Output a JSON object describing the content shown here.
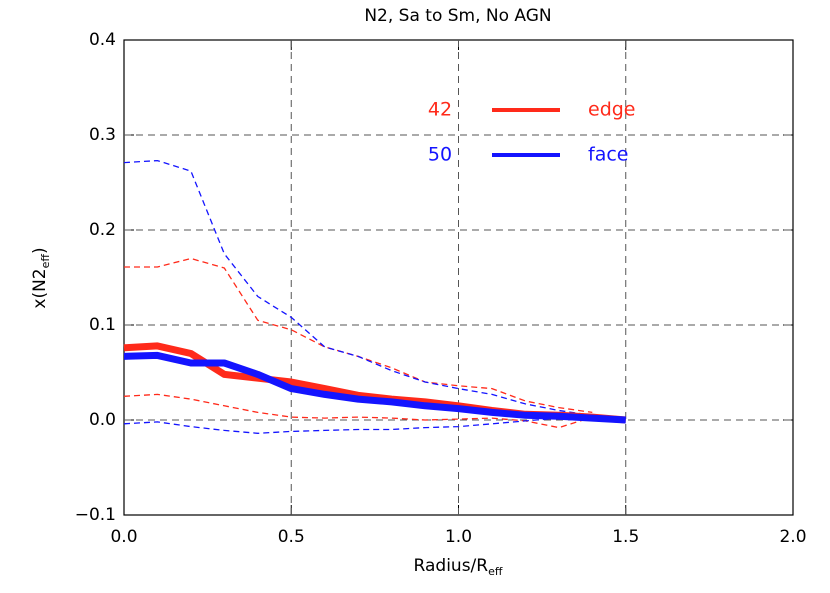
{
  "chart_data": {
    "type": "line",
    "title": "N2, Sa to Sm, No AGN",
    "xlabel": "Radius/R",
    "xlabel_sub": "eff",
    "ylabel": "x(N2",
    "ylabel_sub": "eff",
    "ylabel_end": ")",
    "x": [
      0,
      0.1,
      0.2,
      0.3,
      0.4,
      0.5,
      0.6,
      0.7,
      0.8,
      0.9,
      1.0,
      1.1,
      1.2,
      1.3,
      1.4,
      1.5
    ],
    "series": [
      {
        "name": "edge",
        "label": "42",
        "color": "#ff2a1a",
        "style": "solid",
        "values": [
          0.076,
          0.078,
          0.07,
          0.048,
          0.044,
          0.04,
          0.033,
          0.026,
          0.022,
          0.019,
          0.015,
          0.01,
          0.006,
          0.005,
          0.003,
          0.0
        ]
      },
      {
        "name": "face",
        "label": "50",
        "color": "#1414ff",
        "style": "solid",
        "values": [
          0.067,
          0.068,
          0.06,
          0.06,
          0.048,
          0.033,
          0.027,
          0.022,
          0.019,
          0.015,
          0.012,
          0.008,
          0.005,
          0.004,
          0.002,
          0.0
        ]
      },
      {
        "color": "#ff2a1a",
        "style": "dashed",
        "values": [
          0.161,
          0.161,
          0.17,
          0.16,
          0.105,
          0.095,
          0.077,
          0.067,
          0.055,
          0.04,
          0.036,
          0.033,
          0.02,
          0.013,
          0.008,
          null
        ]
      },
      {
        "color": "#1414ff",
        "style": "dashed",
        "values": [
          0.271,
          0.273,
          0.262,
          0.175,
          0.13,
          0.108,
          0.077,
          0.067,
          0.052,
          0.04,
          0.033,
          0.027,
          0.017,
          0.01,
          0.005,
          null
        ]
      },
      {
        "color": "#ff2a1a",
        "style": "dashed",
        "values": [
          0.025,
          0.027,
          0.022,
          0.015,
          0.008,
          0.003,
          0.002,
          0.003,
          0.002,
          0.0,
          0.001,
          0.002,
          -0.001,
          -0.008,
          0.003,
          null
        ]
      },
      {
        "color": "#1414ff",
        "style": "dashed",
        "values": [
          -0.004,
          -0.002,
          -0.007,
          -0.011,
          -0.014,
          -0.012,
          -0.011,
          -0.01,
          -0.01,
          -0.008,
          -0.007,
          -0.004,
          -0.001,
          0.002,
          0.004,
          null
        ]
      }
    ],
    "xlim": [
      0,
      2.0
    ],
    "xticks": [
      {
        "value": 0,
        "label": "0.0"
      },
      {
        "value": 0.5,
        "label": "0.5"
      },
      {
        "value": 1.0,
        "label": "1.0"
      },
      {
        "value": 1.5,
        "label": "1.5"
      },
      {
        "value": 2.0,
        "label": "2.0"
      }
    ],
    "ylim": [
      -0.1,
      0.4
    ],
    "yticks": [
      {
        "value": -0.1,
        "label": "−0.1"
      },
      {
        "value": 0,
        "label": "0.0"
      },
      {
        "value": 0.1,
        "label": "0.1"
      },
      {
        "value": 0.2,
        "label": "0.2"
      },
      {
        "value": 0.3,
        "label": "0.3"
      },
      {
        "value": 0.4,
        "label": "0.4"
      }
    ],
    "grid": true
  }
}
